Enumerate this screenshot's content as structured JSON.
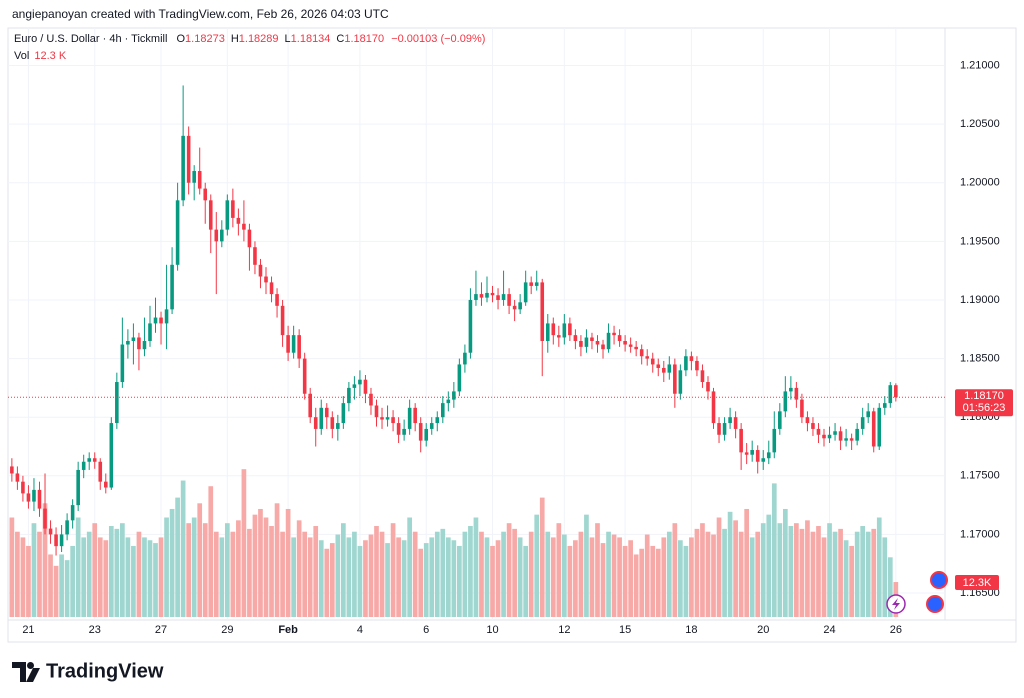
{
  "header": {
    "credit": "angiepanoyan created with TradingView.com, Feb 26, 2026 04:03 UTC"
  },
  "chart_data": {
    "type": "candlestick",
    "title": "Euro / U.S. Dollar · 4h · Tickmill",
    "ohlc_letters": [
      "O",
      "H",
      "L",
      "C"
    ],
    "last_ohlc_labels": [
      "1.18273",
      "1.18289",
      "1.18134",
      "1.18170"
    ],
    "change_label": "−0.00103 (−0.09%)",
    "volume_title": "Vol",
    "volume_label": "12.3 K",
    "volume_badge": "12.3K",
    "countdown": "01:56:23",
    "ohlc": [
      [
        1.1758,
        1.1765,
        1.1745,
        1.1752
      ],
      [
        1.1752,
        1.1758,
        1.1738,
        1.1745
      ],
      [
        1.1745,
        1.175,
        1.1728,
        1.1735
      ],
      [
        1.1735,
        1.1742,
        1.1722,
        1.1728
      ],
      [
        1.1728,
        1.1748,
        1.172,
        1.1738
      ],
      [
        1.1738,
        1.1745,
        1.1715,
        1.1722
      ],
      [
        1.1722,
        1.1752,
        1.17,
        1.1705
      ],
      [
        1.1705,
        1.1712,
        1.1692,
        1.17
      ],
      [
        1.17,
        1.1706,
        1.1682,
        1.169
      ],
      [
        1.169,
        1.1708,
        1.1685,
        1.17
      ],
      [
        1.17,
        1.1718,
        1.1695,
        1.1712
      ],
      [
        1.1712,
        1.173,
        1.1705,
        1.1725
      ],
      [
        1.1725,
        1.1762,
        1.172,
        1.1755
      ],
      [
        1.1755,
        1.1768,
        1.1748,
        1.1762
      ],
      [
        1.1762,
        1.177,
        1.1755,
        1.1765
      ],
      [
        1.1765,
        1.177,
        1.1756,
        1.1762
      ],
      [
        1.1762,
        1.1765,
        1.1738,
        1.1745
      ],
      [
        1.1745,
        1.1752,
        1.1735,
        1.174
      ],
      [
        1.174,
        1.18,
        1.1738,
        1.1795
      ],
      [
        1.1795,
        1.1838,
        1.179,
        1.183
      ],
      [
        1.183,
        1.1885,
        1.1825,
        1.1862
      ],
      [
        1.1862,
        1.1875,
        1.185,
        1.1865
      ],
      [
        1.1865,
        1.188,
        1.1845,
        1.1868
      ],
      [
        1.1868,
        1.1872,
        1.184,
        1.1858
      ],
      [
        1.1858,
        1.1885,
        1.1852,
        1.1865
      ],
      [
        1.1865,
        1.1895,
        1.186,
        1.188
      ],
      [
        1.188,
        1.1902,
        1.1872,
        1.1885
      ],
      [
        1.1885,
        1.189,
        1.1862,
        1.188
      ],
      [
        1.188,
        1.193,
        1.1858,
        1.1892
      ],
      [
        1.1892,
        1.1945,
        1.1888,
        1.193
      ],
      [
        1.193,
        1.2,
        1.1925,
        1.1985
      ],
      [
        1.1985,
        1.2083,
        1.198,
        1.204
      ],
      [
        1.204,
        1.2048,
        1.199,
        1.2
      ],
      [
        1.2,
        1.2015,
        1.1985,
        1.201
      ],
      [
        1.201,
        1.203,
        1.199,
        1.1995
      ],
      [
        1.1995,
        1.2,
        1.1965,
        1.1985
      ],
      [
        1.1985,
        1.199,
        1.194,
        1.196
      ],
      [
        1.196,
        1.1975,
        1.1905,
        1.195
      ],
      [
        1.195,
        1.1968,
        1.1945,
        1.196
      ],
      [
        1.196,
        1.199,
        1.1955,
        1.1985
      ],
      [
        1.1985,
        1.1995,
        1.1962,
        1.197
      ],
      [
        1.197,
        1.1978,
        1.1955,
        1.1965
      ],
      [
        1.1965,
        1.1985,
        1.195,
        1.196
      ],
      [
        1.196,
        1.1965,
        1.1925,
        1.1945
      ],
      [
        1.1945,
        1.195,
        1.1922,
        1.193
      ],
      [
        1.193,
        1.1935,
        1.191,
        1.192
      ],
      [
        1.192,
        1.1928,
        1.1905,
        1.1915
      ],
      [
        1.1915,
        1.192,
        1.1898,
        1.1905
      ],
      [
        1.1905,
        1.191,
        1.1885,
        1.1895
      ],
      [
        1.1895,
        1.19,
        1.186,
        1.187
      ],
      [
        1.187,
        1.1878,
        1.1848,
        1.1855
      ],
      [
        1.1855,
        1.1878,
        1.185,
        1.187
      ],
      [
        1.187,
        1.1875,
        1.1842,
        1.185
      ],
      [
        1.185,
        1.1855,
        1.1815,
        1.182
      ],
      [
        1.182,
        1.1825,
        1.1795,
        1.18
      ],
      [
        1.18,
        1.1808,
        1.1775,
        1.179
      ],
      [
        1.179,
        1.1815,
        1.1785,
        1.1808
      ],
      [
        1.1808,
        1.1812,
        1.179,
        1.18
      ],
      [
        1.18,
        1.1805,
        1.1782,
        1.179
      ],
      [
        1.179,
        1.1802,
        1.178,
        1.1795
      ],
      [
        1.1795,
        1.1818,
        1.179,
        1.1812
      ],
      [
        1.1812,
        1.183,
        1.1805,
        1.1825
      ],
      [
        1.1825,
        1.1835,
        1.1815,
        1.1828
      ],
      [
        1.1828,
        1.184,
        1.1818,
        1.1832
      ],
      [
        1.1832,
        1.1836,
        1.1812,
        1.182
      ],
      [
        1.182,
        1.1825,
        1.1802,
        1.181
      ],
      [
        1.181,
        1.1815,
        1.1792,
        1.18
      ],
      [
        1.18,
        1.1808,
        1.179,
        1.1798
      ],
      [
        1.1798,
        1.181,
        1.1792,
        1.18
      ],
      [
        1.18,
        1.1806,
        1.1788,
        1.1795
      ],
      [
        1.1795,
        1.18,
        1.1778,
        1.1785
      ],
      [
        1.1785,
        1.1798,
        1.178,
        1.179
      ],
      [
        1.179,
        1.1815,
        1.1785,
        1.1808
      ],
      [
        1.1808,
        1.1812,
        1.1788,
        1.1795
      ],
      [
        1.1795,
        1.18,
        1.177,
        1.178
      ],
      [
        1.178,
        1.1795,
        1.1775,
        1.179
      ],
      [
        1.179,
        1.18,
        1.1785,
        1.1795
      ],
      [
        1.1795,
        1.1805,
        1.1788,
        1.18
      ],
      [
        1.18,
        1.1818,
        1.1795,
        1.1812
      ],
      [
        1.1812,
        1.1822,
        1.1805,
        1.1815
      ],
      [
        1.1815,
        1.183,
        1.1808,
        1.1822
      ],
      [
        1.1822,
        1.185,
        1.1818,
        1.1845
      ],
      [
        1.1845,
        1.1862,
        1.1838,
        1.1855
      ],
      [
        1.1855,
        1.191,
        1.185,
        1.19
      ],
      [
        1.19,
        1.1925,
        1.1895,
        1.1905
      ],
      [
        1.1905,
        1.1915,
        1.1895,
        1.1902
      ],
      [
        1.1902,
        1.192,
        1.1898,
        1.1906
      ],
      [
        1.1906,
        1.1912,
        1.1898,
        1.1904
      ],
      [
        1.1904,
        1.191,
        1.1892,
        1.19
      ],
      [
        1.19,
        1.1925,
        1.1895,
        1.1905
      ],
      [
        1.1905,
        1.191,
        1.1888,
        1.1895
      ],
      [
        1.1895,
        1.19,
        1.1882,
        1.1892
      ],
      [
        1.1892,
        1.1905,
        1.1888,
        1.1898
      ],
      [
        1.1898,
        1.1925,
        1.1895,
        1.1915
      ],
      [
        1.1915,
        1.192,
        1.1905,
        1.1912
      ],
      [
        1.1912,
        1.1925,
        1.1908,
        1.1915
      ],
      [
        1.1915,
        1.1918,
        1.1835,
        1.1865
      ],
      [
        1.1865,
        1.1888,
        1.1855,
        1.188
      ],
      [
        1.188,
        1.1885,
        1.1862,
        1.187
      ],
      [
        1.187,
        1.1878,
        1.186,
        1.1868
      ],
      [
        1.1868,
        1.1888,
        1.1862,
        1.188
      ],
      [
        1.188,
        1.1885,
        1.1865,
        1.187
      ],
      [
        1.187,
        1.1875,
        1.1858,
        1.1865
      ],
      [
        1.1865,
        1.187,
        1.1852,
        1.186
      ],
      [
        1.186,
        1.1875,
        1.1855,
        1.1868
      ],
      [
        1.1868,
        1.1872,
        1.1858,
        1.1865
      ],
      [
        1.1865,
        1.187,
        1.1855,
        1.1862
      ],
      [
        1.1862,
        1.1866,
        1.185,
        1.1858
      ],
      [
        1.1858,
        1.188,
        1.1855,
        1.1872
      ],
      [
        1.1872,
        1.1878,
        1.1862,
        1.187
      ],
      [
        1.187,
        1.1875,
        1.186,
        1.1865
      ],
      [
        1.1865,
        1.187,
        1.1856,
        1.1862
      ],
      [
        1.1862,
        1.1868,
        1.1855,
        1.186
      ],
      [
        1.186,
        1.1865,
        1.1852,
        1.1858
      ],
      [
        1.1858,
        1.1862,
        1.1845,
        1.1852
      ],
      [
        1.1852,
        1.1858,
        1.1844,
        1.185
      ],
      [
        1.185,
        1.1855,
        1.1838,
        1.1845
      ],
      [
        1.1845,
        1.185,
        1.1835,
        1.1842
      ],
      [
        1.1842,
        1.1848,
        1.183,
        1.1838
      ],
      [
        1.1838,
        1.1852,
        1.1832,
        1.1845
      ],
      [
        1.1845,
        1.185,
        1.1808,
        1.182
      ],
      [
        1.182,
        1.1845,
        1.1815,
        1.184
      ],
      [
        1.184,
        1.1858,
        1.1835,
        1.1852
      ],
      [
        1.1852,
        1.1856,
        1.184,
        1.1848
      ],
      [
        1.1848,
        1.1852,
        1.1835,
        1.184
      ],
      [
        1.184,
        1.1845,
        1.1825,
        1.183
      ],
      [
        1.183,
        1.1835,
        1.1815,
        1.1822
      ],
      [
        1.1822,
        1.1825,
        1.179,
        1.1795
      ],
      [
        1.1795,
        1.18,
        1.1778,
        1.1785
      ],
      [
        1.1785,
        1.18,
        1.178,
        1.1795
      ],
      [
        1.1795,
        1.1808,
        1.179,
        1.18
      ],
      [
        1.18,
        1.1805,
        1.1782,
        1.179
      ],
      [
        1.179,
        1.1795,
        1.1755,
        1.177
      ],
      [
        1.177,
        1.1778,
        1.176,
        1.1768
      ],
      [
        1.1768,
        1.178,
        1.1762,
        1.1772
      ],
      [
        1.1772,
        1.1776,
        1.1752,
        1.1762
      ],
      [
        1.1762,
        1.1772,
        1.1755,
        1.1765
      ],
      [
        1.1765,
        1.178,
        1.176,
        1.177
      ],
      [
        1.177,
        1.1805,
        1.1765,
        1.179
      ],
      [
        1.179,
        1.1812,
        1.1785,
        1.1805
      ],
      [
        1.1805,
        1.1835,
        1.18,
        1.1822
      ],
      [
        1.1822,
        1.1835,
        1.1815,
        1.1825
      ],
      [
        1.1825,
        1.183,
        1.1808,
        1.1815
      ],
      [
        1.1815,
        1.182,
        1.1795,
        1.18
      ],
      [
        1.18,
        1.1805,
        1.1788,
        1.1795
      ],
      [
        1.1795,
        1.18,
        1.1784,
        1.179
      ],
      [
        1.179,
        1.1795,
        1.1778,
        1.1785
      ],
      [
        1.1785,
        1.179,
        1.1775,
        1.1782
      ],
      [
        1.1782,
        1.1792,
        1.1778,
        1.1785
      ],
      [
        1.1785,
        1.1795,
        1.178,
        1.1788
      ],
      [
        1.1788,
        1.1792,
        1.1772,
        1.178
      ],
      [
        1.178,
        1.179,
        1.1775,
        1.1782
      ],
      [
        1.1782,
        1.1786,
        1.1772,
        1.178
      ],
      [
        1.178,
        1.1795,
        1.1776,
        1.179
      ],
      [
        1.179,
        1.1808,
        1.1785,
        1.18
      ],
      [
        1.18,
        1.1812,
        1.1795,
        1.1805
      ],
      [
        1.1805,
        1.1808,
        1.177,
        1.1775
      ],
      [
        1.1775,
        1.1812,
        1.1772,
        1.1808
      ],
      [
        1.1808,
        1.1818,
        1.1802,
        1.1812
      ],
      [
        1.1812,
        1.183,
        1.1808,
        1.18273
      ],
      [
        1.18273,
        1.18289,
        1.18134,
        1.1817
      ]
    ],
    "volume": [
      35,
      30,
      28,
      25,
      33,
      30,
      40,
      22,
      18,
      22,
      20,
      25,
      35,
      28,
      30,
      33,
      28,
      27,
      32,
      31,
      33,
      28,
      25,
      30,
      28,
      27,
      26,
      28,
      35,
      38,
      42,
      48,
      33,
      35,
      40,
      33,
      46,
      30,
      28,
      33,
      30,
      34,
      52,
      31,
      36,
      38,
      35,
      32,
      40,
      30,
      38,
      28,
      34,
      30,
      28,
      32,
      27,
      24,
      26,
      29,
      33,
      28,
      30,
      25,
      27,
      29,
      32,
      30,
      26,
      33,
      28,
      27,
      35,
      30,
      24,
      26,
      28,
      30,
      31,
      28,
      27,
      25,
      30,
      32,
      35,
      30,
      28,
      25,
      27,
      30,
      33,
      31,
      28,
      25,
      30,
      36,
      42,
      30,
      28,
      33,
      29,
      25,
      27,
      30,
      36,
      28,
      33,
      26,
      30,
      29,
      28,
      25,
      27,
      22,
      24,
      29,
      25,
      24,
      28,
      30,
      33,
      27,
      25,
      28,
      31,
      33,
      30,
      29,
      35,
      31,
      37,
      34,
      30,
      38,
      28,
      30,
      33,
      36,
      47,
      33,
      38,
      32,
      33,
      31,
      34,
      30,
      32,
      28,
      33,
      30,
      31,
      27,
      25,
      30,
      32,
      30,
      31,
      35,
      28,
      21,
      12.3
    ],
    "xlim": [
      -0.7,
      168.9
    ],
    "xticks": [
      {
        "value": 3,
        "label": "21"
      },
      {
        "value": 15,
        "label": "23"
      },
      {
        "value": 27,
        "label": "27"
      },
      {
        "value": 39,
        "label": "29"
      },
      {
        "value": 50,
        "label": "Feb"
      },
      {
        "value": 63,
        "label": "4"
      },
      {
        "value": 75,
        "label": "6"
      },
      {
        "value": 87,
        "label": "10"
      },
      {
        "value": 100,
        "label": "12"
      },
      {
        "value": 111,
        "label": "15"
      },
      {
        "value": 123,
        "label": "18"
      },
      {
        "value": 136,
        "label": "20"
      },
      {
        "value": 148,
        "label": "24"
      },
      {
        "value": 160,
        "label": "26"
      }
    ],
    "ylim": [
      1.1627,
      1.2132
    ],
    "yticks": [
      {
        "value": 1.21,
        "label": "1.21000"
      },
      {
        "value": 1.205,
        "label": "1.20500"
      },
      {
        "value": 1.2,
        "label": "1.20000"
      },
      {
        "value": 1.195,
        "label": "1.19500"
      },
      {
        "value": 1.19,
        "label": "1.19000"
      },
      {
        "value": 1.185,
        "label": "1.18500"
      },
      {
        "value": 1.18,
        "label": "1.18000"
      },
      {
        "value": 1.175,
        "label": "1.17500"
      },
      {
        "value": 1.17,
        "label": "1.17000"
      },
      {
        "value": 1.165,
        "label": "1.16500"
      }
    ],
    "vlim": [
      0,
      70
    ],
    "grid": true,
    "up_color": "#089981",
    "down_color": "#f23645",
    "volume_up_color": "#9fd6cf",
    "volume_down_color": "#f7a9a7"
  },
  "footer": {
    "logo": "TradingView"
  }
}
